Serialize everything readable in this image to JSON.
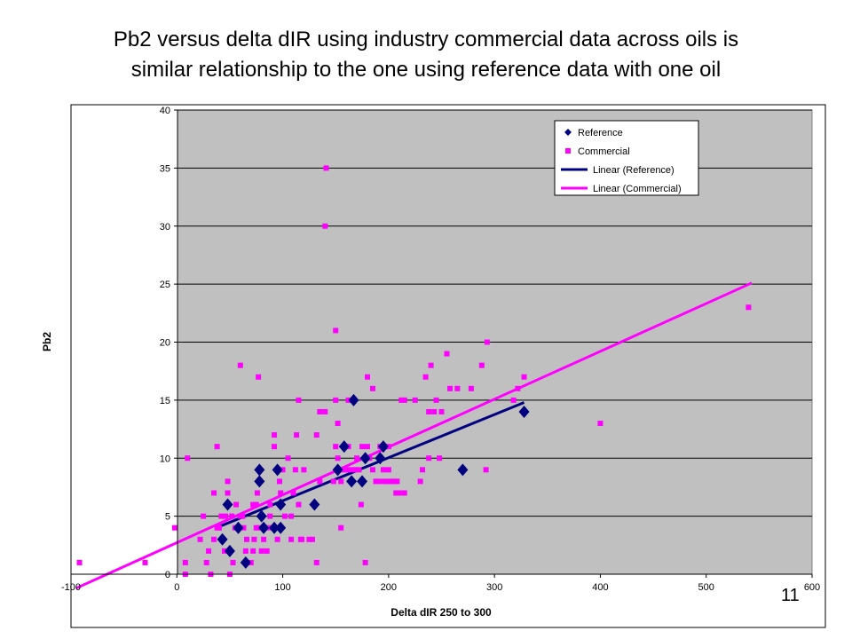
{
  "slide": {
    "title_line1": "Pb2 versus delta dIR using industry commercial data across oils is",
    "title_line2": "similar relationship to the one using reference data with one oil",
    "page_number": "11"
  },
  "colors": {
    "reference": "#000080",
    "commercial": "#ff00ff",
    "plot_background": "#c0c0c0",
    "gridline": "#000000"
  },
  "chart_data": {
    "type": "scatter",
    "title": "",
    "xlabel": "Delta dIR 250 to 300",
    "ylabel": "Pb2",
    "xlim": [
      -100,
      600
    ],
    "ylim": [
      0,
      40
    ],
    "x_ticks": [
      -100,
      0,
      100,
      200,
      300,
      400,
      500,
      600
    ],
    "y_ticks": [
      0,
      5,
      10,
      15,
      20,
      25,
      30,
      35,
      40
    ],
    "grid": "horizontal major gridlines",
    "legend_position": "top-right",
    "legend": [
      "Reference",
      "Commercial",
      "Linear (Reference)",
      "Linear (Commercial)"
    ],
    "series": [
      {
        "name": "Reference",
        "marker": "diamond",
        "points": [
          [
            43,
            3
          ],
          [
            48,
            6
          ],
          [
            50,
            2
          ],
          [
            58,
            4
          ],
          [
            65,
            1
          ],
          [
            78,
            9
          ],
          [
            78,
            8
          ],
          [
            80,
            5
          ],
          [
            82,
            4
          ],
          [
            92,
            4
          ],
          [
            95,
            9
          ],
          [
            98,
            4
          ],
          [
            98,
            6
          ],
          [
            130,
            6
          ],
          [
            152,
            9
          ],
          [
            158,
            11
          ],
          [
            165,
            8
          ],
          [
            167,
            15
          ],
          [
            175,
            8
          ],
          [
            178,
            10
          ],
          [
            192,
            10
          ],
          [
            195,
            11
          ],
          [
            270,
            9
          ],
          [
            328,
            14
          ]
        ]
      },
      {
        "name": "Commercial",
        "marker": "square",
        "points": [
          [
            -92,
            1
          ],
          [
            -30,
            1
          ],
          [
            -2,
            4
          ],
          [
            8,
            0
          ],
          [
            8,
            1
          ],
          [
            10,
            10
          ],
          [
            22,
            3
          ],
          [
            25,
            5
          ],
          [
            28,
            1
          ],
          [
            30,
            2
          ],
          [
            32,
            0
          ],
          [
            35,
            3
          ],
          [
            35,
            7
          ],
          [
            38,
            4
          ],
          [
            38,
            11
          ],
          [
            40,
            4
          ],
          [
            42,
            5
          ],
          [
            45,
            2
          ],
          [
            46,
            5
          ],
          [
            48,
            7
          ],
          [
            48,
            8
          ],
          [
            50,
            0
          ],
          [
            52,
            5
          ],
          [
            53,
            1
          ],
          [
            55,
            4
          ],
          [
            56,
            6
          ],
          [
            58,
            4
          ],
          [
            60,
            5
          ],
          [
            60,
            18
          ],
          [
            62,
            5
          ],
          [
            63,
            4
          ],
          [
            65,
            2
          ],
          [
            66,
            3
          ],
          [
            70,
            1
          ],
          [
            72,
            2
          ],
          [
            72,
            6
          ],
          [
            73,
            3
          ],
          [
            75,
            4
          ],
          [
            75,
            6
          ],
          [
            76,
            7
          ],
          [
            77,
            17
          ],
          [
            78,
            4
          ],
          [
            80,
            2
          ],
          [
            82,
            3
          ],
          [
            85,
            2
          ],
          [
            85,
            4
          ],
          [
            88,
            5
          ],
          [
            88,
            6
          ],
          [
            90,
            4
          ],
          [
            92,
            11
          ],
          [
            92,
            12
          ],
          [
            95,
            3
          ],
          [
            97,
            8
          ],
          [
            98,
            7
          ],
          [
            100,
            9
          ],
          [
            102,
            5
          ],
          [
            105,
            10
          ],
          [
            108,
            3
          ],
          [
            108,
            5
          ],
          [
            110,
            7
          ],
          [
            112,
            9
          ],
          [
            113,
            12
          ],
          [
            115,
            6
          ],
          [
            115,
            15
          ],
          [
            117,
            3
          ],
          [
            118,
            3
          ],
          [
            120,
            9
          ],
          [
            125,
            3
          ],
          [
            128,
            3
          ],
          [
            132,
            1
          ],
          [
            132,
            12
          ],
          [
            135,
            8
          ],
          [
            135,
            14
          ],
          [
            140,
            14
          ],
          [
            140,
            30
          ],
          [
            141,
            35
          ],
          [
            148,
            8
          ],
          [
            150,
            11
          ],
          [
            150,
            15
          ],
          [
            150,
            21
          ],
          [
            152,
            10
          ],
          [
            152,
            13
          ],
          [
            155,
            4
          ],
          [
            155,
            8
          ],
          [
            157,
            9
          ],
          [
            158,
            11
          ],
          [
            160,
            9
          ],
          [
            162,
            11
          ],
          [
            162,
            15
          ],
          [
            165,
            9
          ],
          [
            168,
            9
          ],
          [
            170,
            10
          ],
          [
            172,
            9
          ],
          [
            174,
            6
          ],
          [
            175,
            11
          ],
          [
            178,
            1
          ],
          [
            180,
            11
          ],
          [
            180,
            17
          ],
          [
            182,
            10
          ],
          [
            185,
            9
          ],
          [
            185,
            16
          ],
          [
            188,
            8
          ],
          [
            190,
            8
          ],
          [
            192,
            11
          ],
          [
            195,
            8
          ],
          [
            195,
            9
          ],
          [
            198,
            8
          ],
          [
            200,
            9
          ],
          [
            200,
            11
          ],
          [
            202,
            8
          ],
          [
            205,
            8
          ],
          [
            207,
            7
          ],
          [
            208,
            8
          ],
          [
            210,
            7
          ],
          [
            212,
            15
          ],
          [
            215,
            7
          ],
          [
            215,
            15
          ],
          [
            225,
            15
          ],
          [
            230,
            8
          ],
          [
            232,
            9
          ],
          [
            235,
            17
          ],
          [
            238,
            10
          ],
          [
            238,
            14
          ],
          [
            240,
            18
          ],
          [
            243,
            14
          ],
          [
            245,
            15
          ],
          [
            248,
            10
          ],
          [
            250,
            14
          ],
          [
            255,
            19
          ],
          [
            258,
            16
          ],
          [
            265,
            16
          ],
          [
            278,
            16
          ],
          [
            288,
            18
          ],
          [
            292,
            9
          ],
          [
            293,
            20
          ],
          [
            318,
            15
          ],
          [
            322,
            16
          ],
          [
            328,
            17
          ],
          [
            400,
            13
          ],
          [
            540,
            23
          ]
        ]
      }
    ],
    "trendlines": [
      {
        "name": "Linear (Reference)",
        "x": [
          40,
          328
        ],
        "y": [
          4.1,
          14.8
        ]
      },
      {
        "name": "Linear (Commercial)",
        "x": [
          -95,
          543
        ],
        "y": [
          -1.2,
          25.1
        ]
      }
    ]
  }
}
